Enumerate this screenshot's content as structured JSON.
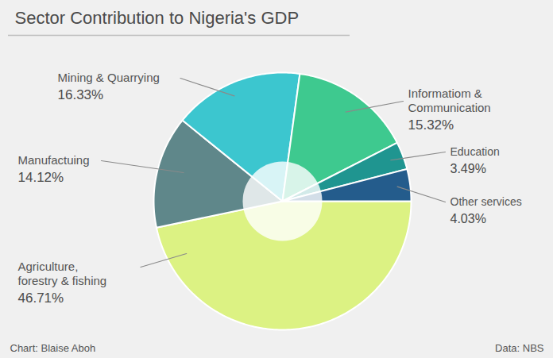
{
  "chart_data": {
    "type": "pie",
    "title": "Sector Contribution to Nigeria's GDP",
    "categories": [
      "Agriculture, forestry & fishing",
      "Manufactuing",
      "Mining & Quarrying",
      "Informatiom & Communication",
      "Education",
      "Other services"
    ],
    "values": [
      46.71,
      14.12,
      16.33,
      15.32,
      3.49,
      4.03
    ],
    "value_labels": [
      "46.71%",
      "14.12%",
      "16.33%",
      "15.32%",
      "3.49%",
      "4.03%"
    ],
    "colors": [
      "#dcf283",
      "#5f878a",
      "#3cc6cf",
      "#3ec98f",
      "#1f9590",
      "#245c8c"
    ],
    "data_labels": true,
    "caption": "Chart: Blaise Aboh",
    "source": "Data: NBS"
  }
}
